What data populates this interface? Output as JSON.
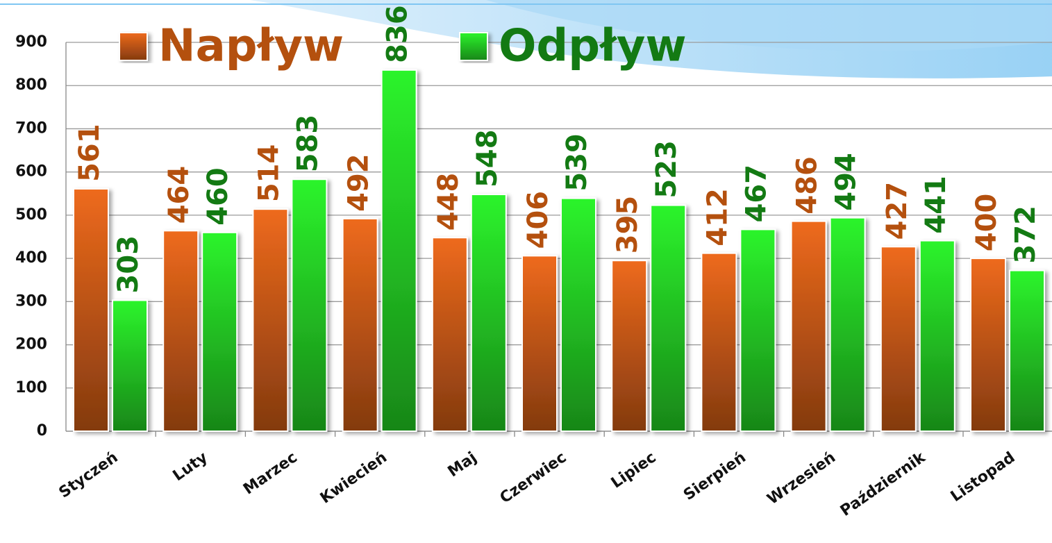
{
  "chart_data": {
    "type": "bar",
    "categories": [
      "Styczeń",
      "Luty",
      "Marzec",
      "Kwiecień",
      "Maj",
      "Czerwiec",
      "Lipiec",
      "Sierpień",
      "Wrzesień",
      "Październik",
      "Listopad"
    ],
    "series": [
      {
        "name": "Napływ",
        "color": "#ee6a1c",
        "label_color": "#b4500e",
        "values": [
          561,
          464,
          514,
          492,
          448,
          406,
          395,
          412,
          486,
          427,
          400
        ]
      },
      {
        "name": "Odpływ",
        "color": "#2cf42c",
        "label_color": "#137a13",
        "values": [
          303,
          460,
          583,
          836,
          548,
          539,
          523,
          467,
          494,
          441,
          372
        ]
      }
    ],
    "ylim": [
      0,
      900
    ],
    "yticks": [
      0,
      100,
      200,
      300,
      400,
      500,
      600,
      700,
      800,
      900
    ],
    "grid": true,
    "legend": "top"
  }
}
